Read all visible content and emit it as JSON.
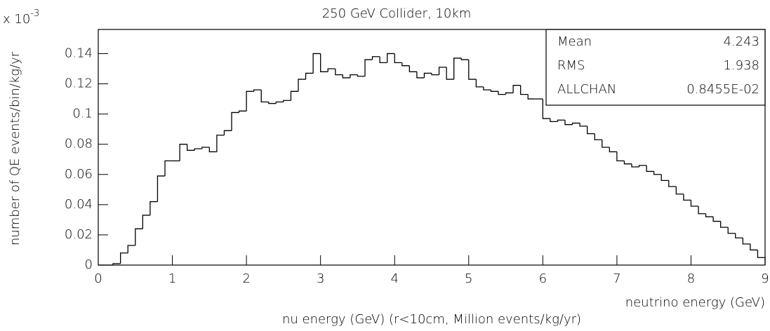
{
  "chart_data": {
    "type": "histogram",
    "title": "250 GeV Collider, 10km",
    "ylabel": "number of QE events/bin/kg/yr",
    "xlabel": "neutrino energy (GeV)",
    "caption": "nu energy (GeV) (r<10cm, Million events/kg/yr)",
    "y_multiplier": {
      "base": "x 10",
      "exponent": "-3"
    },
    "stats": [
      {
        "label": "Mean",
        "value": "4.243"
      },
      {
        "label": "RMS",
        "value": "1.938"
      },
      {
        "label": "ALLCHAN",
        "value": "0.8455E-02"
      }
    ],
    "bins": [
      0,
      0.1,
      0.2,
      0.3,
      0.4,
      0.5,
      0.6,
      0.7,
      0.8,
      0.9,
      1,
      1.1,
      1.2,
      1.3,
      1.4,
      1.5,
      1.6,
      1.7,
      1.8,
      1.9,
      2,
      2.1,
      2.2,
      2.3,
      2.4,
      2.5,
      2.6,
      2.7,
      2.8,
      2.9,
      3,
      3.1,
      3.2,
      3.3,
      3.4,
      3.5,
      3.6,
      3.7,
      3.8,
      3.9,
      4,
      4.1,
      4.2,
      4.3,
      4.4,
      4.5,
      4.6,
      4.7,
      4.8,
      4.9,
      5,
      5.1,
      5.2,
      5.3,
      5.4,
      5.5,
      5.6,
      5.7,
      5.8,
      5.9,
      6,
      6.1,
      6.2,
      6.3,
      6.4,
      6.5,
      6.6,
      6.7,
      6.8,
      6.9,
      7,
      7.1,
      7.2,
      7.3,
      7.4,
      7.5,
      7.6,
      7.7,
      7.8,
      7.9,
      8,
      8.1,
      8.2,
      8.3,
      8.4,
      8.5,
      8.6,
      8.7,
      8.8,
      8.9,
      9
    ],
    "values": [
      0,
      0,
      0.001,
      0.008,
      0.013,
      0.024,
      0.033,
      0.042,
      0.059,
      0.069,
      0.069,
      0.08,
      0.076,
      0.077,
      0.078,
      0.075,
      0.086,
      0.089,
      0.101,
      0.102,
      0.115,
      0.116,
      0.108,
      0.107,
      0.108,
      0.109,
      0.115,
      0.123,
      0.127,
      0.14,
      0.128,
      0.13,
      0.126,
      0.124,
      0.126,
      0.125,
      0.136,
      0.138,
      0.134,
      0.14,
      0.134,
      0.132,
      0.128,
      0.124,
      0.127,
      0.126,
      0.131,
      0.123,
      0.137,
      0.136,
      0.123,
      0.118,
      0.116,
      0.115,
      0.113,
      0.114,
      0.119,
      0.113,
      0.11,
      0.11,
      0.097,
      0.095,
      0.096,
      0.093,
      0.094,
      0.092,
      0.087,
      0.083,
      0.078,
      0.075,
      0.069,
      0.067,
      0.065,
      0.066,
      0.062,
      0.06,
      0.056,
      0.052,
      0.047,
      0.043,
      0.039,
      0.034,
      0.032,
      0.029,
      0.025,
      0.021,
      0.018,
      0.014,
      0.01,
      0.005
    ],
    "color": "#000000",
    "xlim": [
      0,
      9
    ],
    "ylim": [
      0,
      0.156
    ],
    "xticks": [
      0,
      1,
      2,
      3,
      4,
      5,
      6,
      7,
      8,
      9
    ],
    "yticks": [
      0,
      0.02,
      0.04,
      0.06,
      0.08,
      0.1,
      0.12,
      0.14
    ],
    "grid": false
  }
}
